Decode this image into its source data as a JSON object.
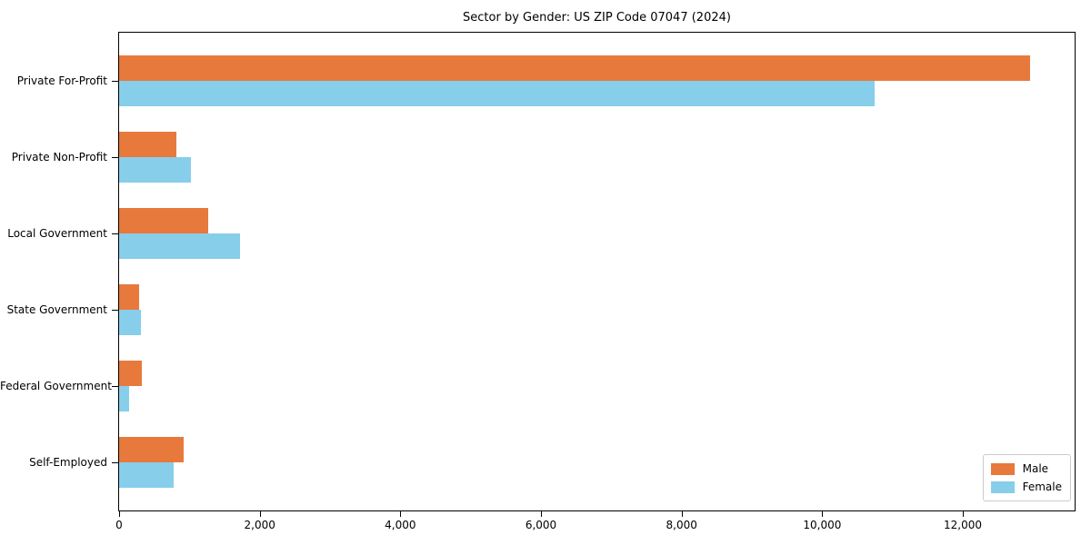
{
  "chart_data": {
    "type": "bar",
    "orientation": "horizontal",
    "title": "Sector by Gender: US ZIP Code 07047 (2024)",
    "categories": [
      "Private For-Profit",
      "Private Non-Profit",
      "Local Government",
      "State Government",
      "Federal Government",
      "Self-Employed"
    ],
    "series": [
      {
        "name": "Male",
        "color": "#e8793c",
        "values": [
          12950,
          810,
          1265,
          290,
          320,
          915
        ]
      },
      {
        "name": "Female",
        "color": "#87ceeb",
        "values": [
          10750,
          1020,
          1715,
          310,
          140,
          775
        ]
      }
    ],
    "xlabel": "",
    "ylabel": "",
    "xlim": [
      0,
      13590
    ],
    "xticks": [
      0,
      2000,
      4000,
      6000,
      8000,
      10000,
      12000
    ],
    "xtick_labels": [
      "0",
      "2,000",
      "4,000",
      "6,000",
      "8,000",
      "10,000",
      "12,000"
    ],
    "grid": false,
    "legend_position": "lower right",
    "frame": true,
    "colors": {
      "spine": "#000000",
      "legend_border": "#cccccc",
      "background": "#ffffff"
    }
  }
}
